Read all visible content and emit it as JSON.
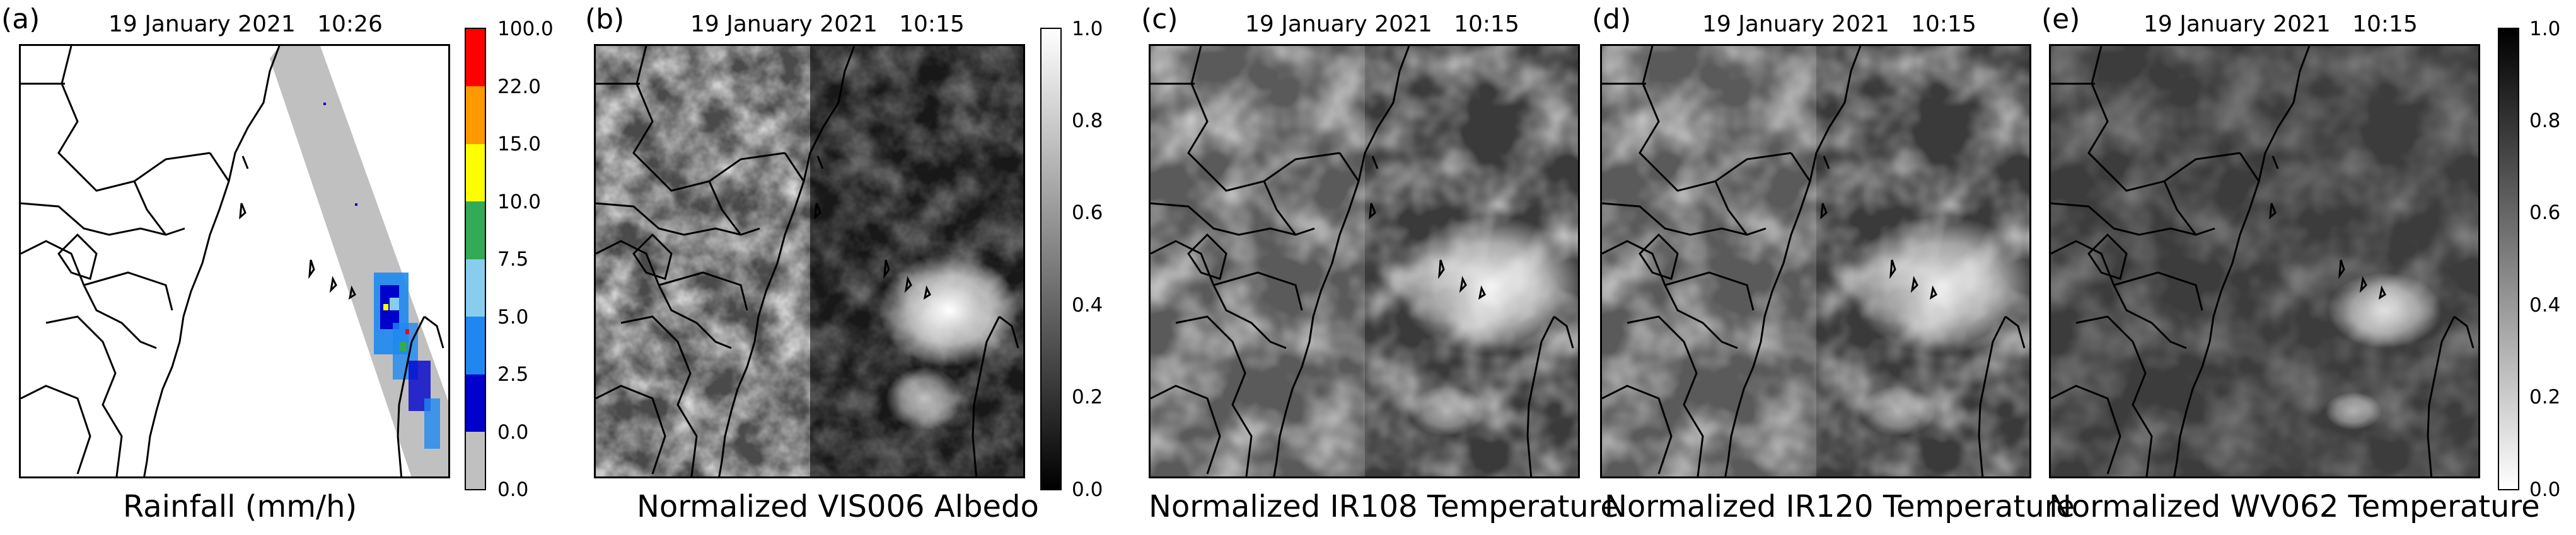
{
  "panels": [
    {
      "letter": "(a)",
      "date": "19 January 2021   10:26",
      "caption": "Rainfall (mm/h)"
    },
    {
      "letter": "(b)",
      "date": "19 January 2021   10:15",
      "caption": "Normalized VIS006 Albedo"
    },
    {
      "letter": "(c)",
      "date": "19 January 2021   10:15",
      "caption": "Normalized IR108 Temperature"
    },
    {
      "letter": "(d)",
      "date": "19 January 2021   10:15",
      "caption": "Normalized IR120 Temperature"
    },
    {
      "letter": "(e)",
      "date": "19 January 2021   10:15",
      "caption": "Normalized WV062 Temperature"
    }
  ],
  "rainfall_colorbar": {
    "labels": [
      "100.0",
      "22.0",
      "15.0",
      "10.0",
      "7.5",
      "5.0",
      "2.5",
      "0.0",
      "0.0"
    ],
    "colors": [
      "#ff0000",
      "#ff9900",
      "#ffff00",
      "#33aa55",
      "#88ccee",
      "#1e88f0",
      "#0000cc",
      "#c0c0c0"
    ]
  },
  "vis_colorbar": {
    "labels": [
      "1.0",
      "0.8",
      "0.6",
      "0.4",
      "0.2",
      "0.0"
    ],
    "top_color": "#ffffff",
    "bottom_color": "#000000"
  },
  "ir_colorbar": {
    "labels": [
      "1.0",
      "0.8",
      "0.6",
      "0.4",
      "0.2",
      "0.0"
    ],
    "top_color": "#000000",
    "bottom_color": "#ffffff"
  },
  "icons": {
    "map": "east-africa-coastline-map",
    "satellite": "satellite-image"
  }
}
